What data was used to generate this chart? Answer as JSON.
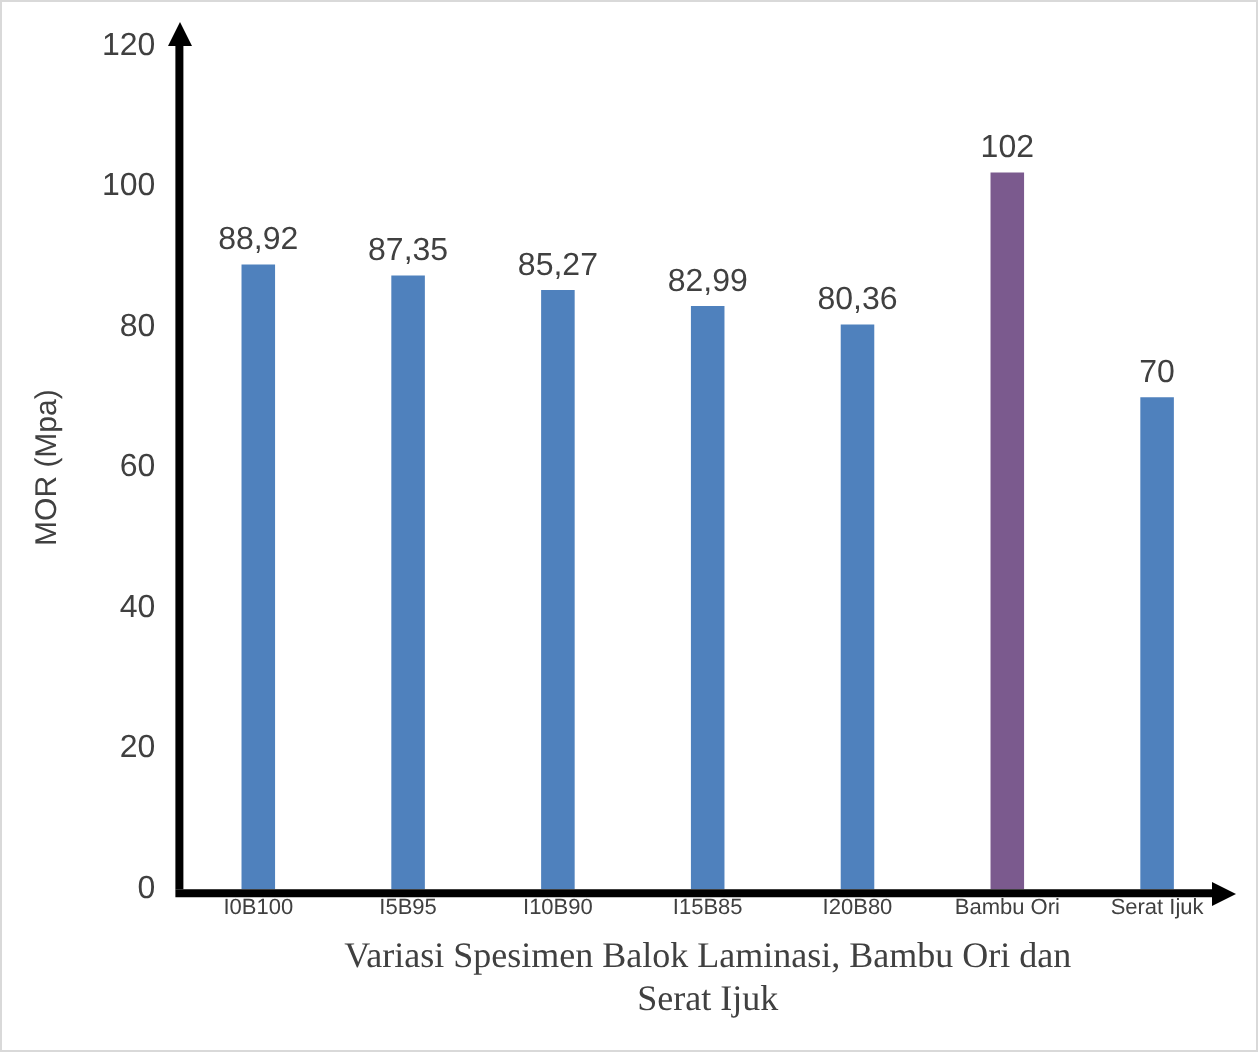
{
  "chart_data": {
    "type": "bar",
    "xlabel": "Variasi Spesimen Balok Laminasi, Bambu Ori dan Serat Ijuk",
    "ylabel": "MOR (Mpa)",
    "categories": [
      "I0B100",
      "I5B95",
      "I10B90",
      "I15B85",
      "I20B80",
      "Bambu Ori",
      "Serat Ijuk"
    ],
    "values": [
      88.92,
      87.35,
      85.27,
      82.99,
      80.36,
      102,
      70
    ],
    "value_labels": [
      "88,92",
      "87,35",
      "85,27",
      "82,99",
      "80,36",
      "102",
      "70"
    ],
    "colors": [
      "#4f81bd",
      "#4f81bd",
      "#4f81bd",
      "#4f81bd",
      "#4f81bd",
      "#7b5a8e",
      "#4f81bd"
    ],
    "ylim": [
      0,
      120
    ],
    "yticks": [
      0,
      20,
      40,
      60,
      80,
      100,
      120
    ],
    "grid": false,
    "legend": false
  }
}
